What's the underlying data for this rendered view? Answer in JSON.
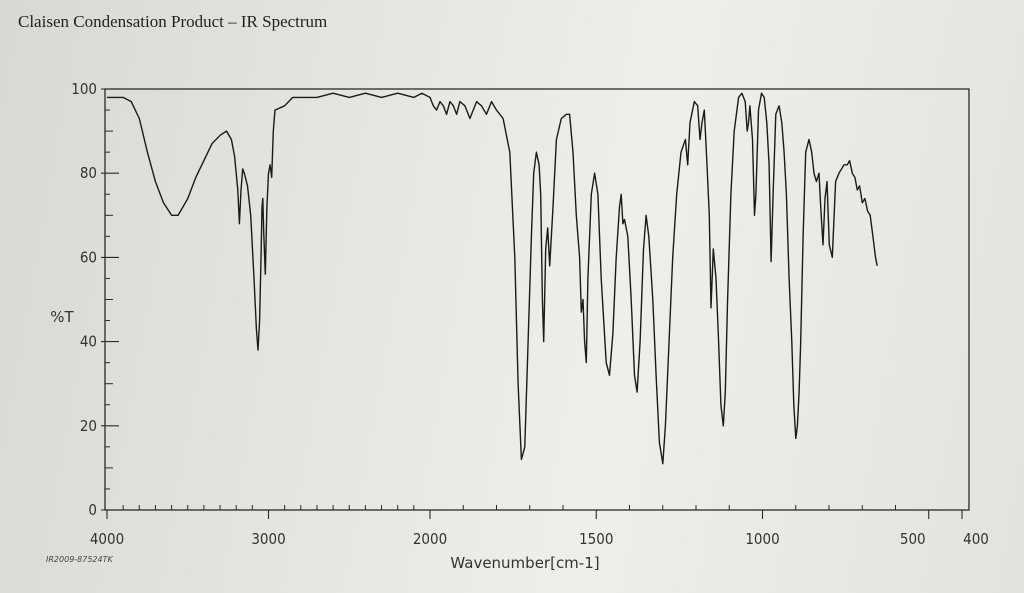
{
  "page": {
    "title": "Claisen Condensation Product – IR Spectrum",
    "catalog_id": "IR2009-87524TK"
  },
  "chart_data": {
    "type": "line",
    "title": "Claisen Condensation Product – IR Spectrum",
    "xlabel": "Wavenumber[cm-1]",
    "ylabel": "%T",
    "xlim": [
      4000,
      400
    ],
    "ylim": [
      0,
      100
    ],
    "x_scale": "split linear (4000-2000, 2000-400)",
    "grid": false,
    "x_ticks": [
      {
        "value": 4000,
        "label": "4000"
      },
      {
        "value": 3000,
        "label": "3000"
      },
      {
        "value": 2000,
        "label": "2000"
      },
      {
        "value": 1500,
        "label": "1500"
      },
      {
        "value": 1000,
        "label": "1000"
      },
      {
        "value": 500,
        "label": "500"
      },
      {
        "value": 400,
        "label": "400"
      }
    ],
    "y_ticks": [
      {
        "value": 0,
        "label": "0"
      },
      {
        "value": 20,
        "label": "20"
      },
      {
        "value": 40,
        "label": "40"
      },
      {
        "value": 60,
        "label": "60"
      },
      {
        "value": 80,
        "label": "80"
      },
      {
        "value": 100,
        "label": "100"
      }
    ],
    "series": [
      {
        "color": "#1a1a1a",
        "points": [
          [
            4000,
            98
          ],
          [
            3900,
            98
          ],
          [
            3850,
            97
          ],
          [
            3800,
            93
          ],
          [
            3750,
            85
          ],
          [
            3700,
            78
          ],
          [
            3650,
            73
          ],
          [
            3600,
            70
          ],
          [
            3560,
            70
          ],
          [
            3500,
            74
          ],
          [
            3450,
            79
          ],
          [
            3400,
            83
          ],
          [
            3350,
            87
          ],
          [
            3300,
            89
          ],
          [
            3260,
            90
          ],
          [
            3230,
            88
          ],
          [
            3210,
            84
          ],
          [
            3190,
            76
          ],
          [
            3180,
            68
          ],
          [
            3170,
            76
          ],
          [
            3160,
            81
          ],
          [
            3150,
            80
          ],
          [
            3130,
            77
          ],
          [
            3110,
            70
          ],
          [
            3090,
            55
          ],
          [
            3075,
            43
          ],
          [
            3065,
            38
          ],
          [
            3055,
            45
          ],
          [
            3045,
            62
          ],
          [
            3040,
            72
          ],
          [
            3035,
            74
          ],
          [
            3030,
            66
          ],
          [
            3020,
            56
          ],
          [
            3010,
            72
          ],
          [
            3000,
            80
          ],
          [
            2990,
            82
          ],
          [
            2980,
            79
          ],
          [
            2970,
            90
          ],
          [
            2960,
            95
          ],
          [
            2900,
            96
          ],
          [
            2850,
            98
          ],
          [
            2800,
            98
          ],
          [
            2700,
            98
          ],
          [
            2600,
            99
          ],
          [
            2500,
            98
          ],
          [
            2400,
            99
          ],
          [
            2300,
            98
          ],
          [
            2200,
            99
          ],
          [
            2100,
            98
          ],
          [
            2050,
            99
          ],
          [
            2000,
            98
          ],
          [
            1990,
            96
          ],
          [
            1980,
            95
          ],
          [
            1970,
            97
          ],
          [
            1960,
            96
          ],
          [
            1950,
            94
          ],
          [
            1940,
            97
          ],
          [
            1930,
            96
          ],
          [
            1920,
            94
          ],
          [
            1910,
            97
          ],
          [
            1895,
            96
          ],
          [
            1880,
            93
          ],
          [
            1860,
            97
          ],
          [
            1845,
            96
          ],
          [
            1830,
            94
          ],
          [
            1815,
            97
          ],
          [
            1800,
            95
          ],
          [
            1780,
            93
          ],
          [
            1760,
            85
          ],
          [
            1745,
            60
          ],
          [
            1735,
            30
          ],
          [
            1725,
            12
          ],
          [
            1715,
            15
          ],
          [
            1705,
            40
          ],
          [
            1695,
            65
          ],
          [
            1688,
            80
          ],
          [
            1680,
            85
          ],
          [
            1672,
            82
          ],
          [
            1667,
            75
          ],
          [
            1662,
            50
          ],
          [
            1658,
            40
          ],
          [
            1652,
            62
          ],
          [
            1646,
            67
          ],
          [
            1640,
            58
          ],
          [
            1630,
            72
          ],
          [
            1620,
            88
          ],
          [
            1605,
            93
          ],
          [
            1590,
            94
          ],
          [
            1580,
            94
          ],
          [
            1570,
            85
          ],
          [
            1560,
            70
          ],
          [
            1550,
            60
          ],
          [
            1545,
            47
          ],
          [
            1540,
            50
          ],
          [
            1535,
            40
          ],
          [
            1530,
            35
          ],
          [
            1525,
            55
          ],
          [
            1515,
            75
          ],
          [
            1505,
            80
          ],
          [
            1495,
            75
          ],
          [
            1485,
            55
          ],
          [
            1470,
            35
          ],
          [
            1460,
            32
          ],
          [
            1450,
            42
          ],
          [
            1440,
            60
          ],
          [
            1430,
            72
          ],
          [
            1425,
            75
          ],
          [
            1420,
            68
          ],
          [
            1415,
            69
          ],
          [
            1405,
            65
          ],
          [
            1395,
            50
          ],
          [
            1385,
            32
          ],
          [
            1377,
            28
          ],
          [
            1368,
            40
          ],
          [
            1358,
            62
          ],
          [
            1350,
            70
          ],
          [
            1342,
            65
          ],
          [
            1330,
            50
          ],
          [
            1320,
            32
          ],
          [
            1310,
            16
          ],
          [
            1300,
            11
          ],
          [
            1292,
            20
          ],
          [
            1282,
            38
          ],
          [
            1270,
            60
          ],
          [
            1258,
            75
          ],
          [
            1245,
            85
          ],
          [
            1232,
            88
          ],
          [
            1225,
            82
          ],
          [
            1218,
            92
          ],
          [
            1205,
            97
          ],
          [
            1195,
            96
          ],
          [
            1188,
            88
          ],
          [
            1182,
            92
          ],
          [
            1175,
            95
          ],
          [
            1168,
            84
          ],
          [
            1160,
            70
          ],
          [
            1155,
            48
          ],
          [
            1148,
            62
          ],
          [
            1140,
            55
          ],
          [
            1132,
            40
          ],
          [
            1125,
            25
          ],
          [
            1118,
            20
          ],
          [
            1112,
            28
          ],
          [
            1105,
            50
          ],
          [
            1095,
            75
          ],
          [
            1085,
            90
          ],
          [
            1072,
            98
          ],
          [
            1062,
            99
          ],
          [
            1052,
            97
          ],
          [
            1046,
            90
          ],
          [
            1042,
            92
          ],
          [
            1038,
            96
          ],
          [
            1030,
            88
          ],
          [
            1024,
            70
          ],
          [
            1020,
            75
          ],
          [
            1012,
            95
          ],
          [
            1003,
            99
          ],
          [
            995,
            98
          ],
          [
            987,
            92
          ],
          [
            980,
            82
          ],
          [
            974,
            59
          ],
          [
            968,
            75
          ],
          [
            960,
            94
          ],
          [
            950,
            96
          ],
          [
            942,
            92
          ],
          [
            935,
            85
          ],
          [
            928,
            75
          ],
          [
            920,
            55
          ],
          [
            912,
            40
          ],
          [
            906,
            25
          ],
          [
            900,
            17
          ],
          [
            895,
            20
          ],
          [
            890,
            28
          ],
          [
            885,
            40
          ],
          [
            878,
            65
          ],
          [
            870,
            85
          ],
          [
            860,
            88
          ],
          [
            852,
            85
          ],
          [
            845,
            80
          ],
          [
            838,
            78
          ],
          [
            830,
            80
          ],
          [
            825,
            72
          ],
          [
            818,
            63
          ],
          [
            812,
            74
          ],
          [
            806,
            78
          ],
          [
            799,
            63
          ],
          [
            790,
            60
          ],
          [
            780,
            78
          ],
          [
            770,
            80
          ],
          [
            755,
            82
          ],
          [
            745,
            82
          ],
          [
            738,
            83
          ],
          [
            730,
            80
          ],
          [
            722,
            79
          ],
          [
            715,
            76
          ],
          [
            708,
            77
          ],
          [
            700,
            73
          ],
          [
            692,
            74
          ],
          [
            684,
            71
          ],
          [
            676,
            70
          ],
          [
            668,
            65
          ],
          [
            660,
            60
          ],
          [
            655,
            58
          ]
        ]
      }
    ],
    "annotations": [
      {
        "text": "IR2009-87524TK"
      }
    ]
  }
}
